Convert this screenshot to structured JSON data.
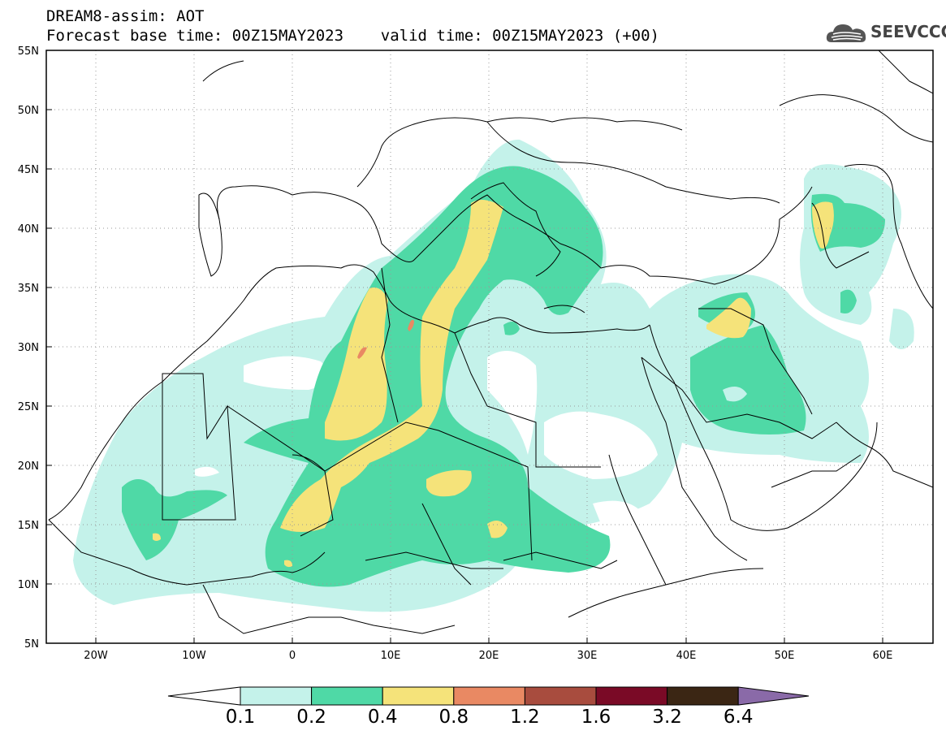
{
  "header": {
    "title_line1": "DREAM8-assim: AOT",
    "title_line2": "Forecast base time: 00Z15MAY2023    valid time: 00Z15MAY2023 (+00)",
    "logo_text": "SEEVCCC"
  },
  "map": {
    "lat_labels": [
      "55N",
      "50N",
      "45N",
      "40N",
      "35N",
      "30N",
      "25N",
      "20N",
      "15N",
      "10N",
      "5N"
    ],
    "lon_labels": [
      "20W",
      "10W",
      "0",
      "10E",
      "20E",
      "30E",
      "40E",
      "50E",
      "60E"
    ],
    "colors": {
      "c1": "#c4f2ea",
      "c2": "#4fd9a6",
      "c3": "#f5e37a",
      "c4": "#e98963",
      "land_line": "#000000",
      "grid": "#888888"
    }
  },
  "colorbar": {
    "labels": [
      "0.1",
      "0.2",
      "0.4",
      "0.8",
      "1.2",
      "1.6",
      "3.2",
      "6.4"
    ],
    "colors": [
      "#ffffff",
      "#c4f2ea",
      "#4fd9a6",
      "#f5e37a",
      "#e98963",
      "#a84c3e",
      "#7a0a26",
      "#3b2614",
      "#8a6aa8"
    ]
  }
}
